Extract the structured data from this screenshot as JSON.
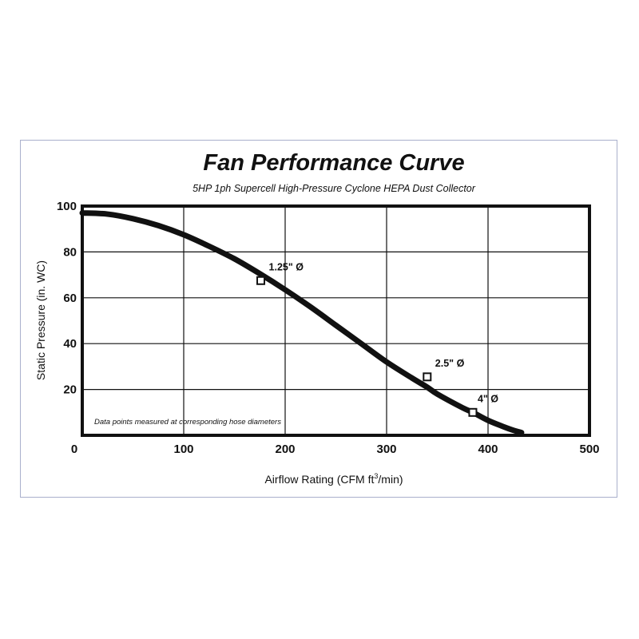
{
  "chart_data": {
    "type": "line",
    "title": "Fan Performance Curve",
    "subtitle": "5HP 1ph Supercell High-Pressure Cyclone HEPA Dust Collector",
    "xlabel": "Airflow Rating (CFM ft³/min)",
    "xlabel_parts": {
      "pre": "Airflow Rating (CFM ft",
      "sup": "3",
      "post": "/min)"
    },
    "ylabel": "Static Pressure (in. WC)",
    "xlim": [
      0,
      500
    ],
    "ylim": [
      0,
      100
    ],
    "x_ticks": [
      "0",
      "100",
      "200",
      "300",
      "400",
      "500"
    ],
    "y_ticks": [
      "20",
      "40",
      "60",
      "80",
      "100"
    ],
    "x_tick_values": [
      0,
      100,
      200,
      300,
      400,
      500
    ],
    "y_tick_values": [
      20,
      40,
      60,
      80,
      100
    ],
    "grid": true,
    "series": [
      {
        "x": [
          0,
          25,
          50,
          75,
          100,
          125,
          150,
          175,
          200,
          225,
          250,
          275,
          300,
          325,
          340,
          350,
          375,
          385,
          400,
          415,
          425,
          433
        ],
        "y": [
          97,
          96.5,
          94.5,
          91.5,
          87.5,
          82.5,
          77,
          70.5,
          63.5,
          56,
          48,
          40,
          32,
          25,
          21,
          18,
          12,
          10,
          6.5,
          3.8,
          2.2,
          1.2
        ]
      }
    ],
    "data_points": [
      {
        "label": "1.25\" Ø",
        "x": 176,
        "y": 67.5
      },
      {
        "label": "2.5\" Ø",
        "x": 340,
        "y": 25.5
      },
      {
        "label": "4\" Ø",
        "x": 385,
        "y": 10
      }
    ],
    "annotation": "Data points measured at corresponding hose diameters"
  }
}
